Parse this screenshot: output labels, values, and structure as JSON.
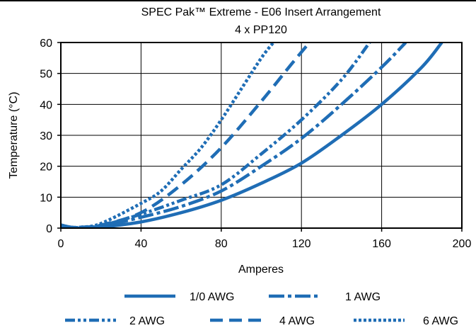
{
  "chart_data": {
    "type": "line",
    "title": "SPEC Pak™ Extreme - E06 Insert Arrangement",
    "subtitle": "4 x PP120",
    "xlabel": "Amperes",
    "ylabel": "Temperature (°C)",
    "xlim": [
      0,
      200
    ],
    "ylim": [
      0,
      60
    ],
    "xticks": [
      0,
      40,
      80,
      120,
      160,
      200
    ],
    "yticks": [
      0,
      10,
      20,
      30,
      40,
      50,
      60
    ],
    "grid": true,
    "legend_position": "bottom",
    "color": "#1f6db5",
    "series": [
      {
        "name": "1/0 AWG",
        "dash": "solid",
        "x": [
          0,
          5,
          10,
          20,
          40,
          60,
          80,
          100,
          120,
          140,
          160,
          180,
          190
        ],
        "y": [
          0.5,
          0,
          0,
          0.3,
          2,
          5,
          9,
          14.5,
          21,
          30,
          40,
          52,
          60
        ]
      },
      {
        "name": "1 AWG",
        "dash": "dashdot",
        "x": [
          0,
          5,
          10,
          20,
          40,
          60,
          80,
          100,
          120,
          140,
          160,
          172
        ],
        "y": [
          0.8,
          0.2,
          0.2,
          0.6,
          3.5,
          7,
          12,
          20,
          29,
          40,
          52,
          60
        ]
      },
      {
        "name": "2 AWG",
        "dash": "dashdotdot",
        "x": [
          0,
          5,
          10,
          20,
          40,
          60,
          80,
          100,
          120,
          140,
          154
        ],
        "y": [
          1,
          0.3,
          0.3,
          0.8,
          4.5,
          9,
          14,
          24,
          35,
          48,
          60
        ]
      },
      {
        "name": "4 AWG",
        "dash": "dash",
        "x": [
          0,
          5,
          10,
          20,
          40,
          60,
          80,
          100,
          115,
          124
        ],
        "y": [
          1,
          0.3,
          0.3,
          1,
          5,
          14,
          26,
          41,
          53,
          60
        ]
      },
      {
        "name": "6 AWG",
        "dash": "dot",
        "x": [
          0,
          5,
          10,
          20,
          40,
          50,
          60,
          70,
          80,
          90,
          100,
          106
        ],
        "y": [
          1,
          0.3,
          0.3,
          1.5,
          8,
          12,
          19,
          26,
          35,
          45,
          55,
          60
        ]
      }
    ]
  }
}
